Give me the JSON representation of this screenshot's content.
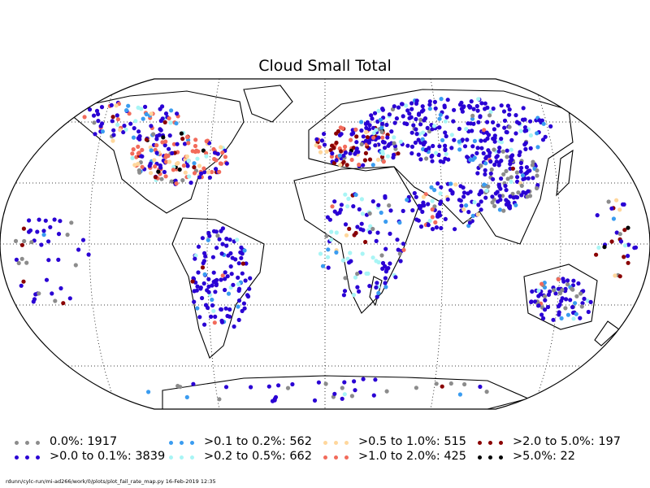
{
  "title": "Cloud Small Total",
  "footer": "rdunn/cylc-run/mi-ad266/work/0/plots/plot_fail_rate_map.py   16-Feb-2019 12:35",
  "chart_data": {
    "type": "scatter",
    "projection": "Robinson",
    "gridlines": "dotted",
    "legend_position": "bottom",
    "categories": [
      {
        "label": "0.0%: 1917",
        "color": "#8c8c8c"
      },
      {
        "label": ">0.0 to 0.1%: 3839",
        "color": "#2a00d4"
      },
      {
        "label": ">0.1 to 0.2%: 562",
        "color": "#3a9cf0"
      },
      {
        "label": ">0.2 to 0.5%: 662",
        "color": "#a8f5f5"
      },
      {
        "label": ">0.5 to 1.0%: 515",
        "color": "#ffd79c"
      },
      {
        "label": ">1.0 to 2.0%: 425",
        "color": "#f26b5b"
      },
      {
        "label": ">2.0 to 5.0%: 197",
        "color": "#8a0000"
      },
      {
        "label": ">5.0%: 22",
        "color": "#000000"
      }
    ]
  }
}
